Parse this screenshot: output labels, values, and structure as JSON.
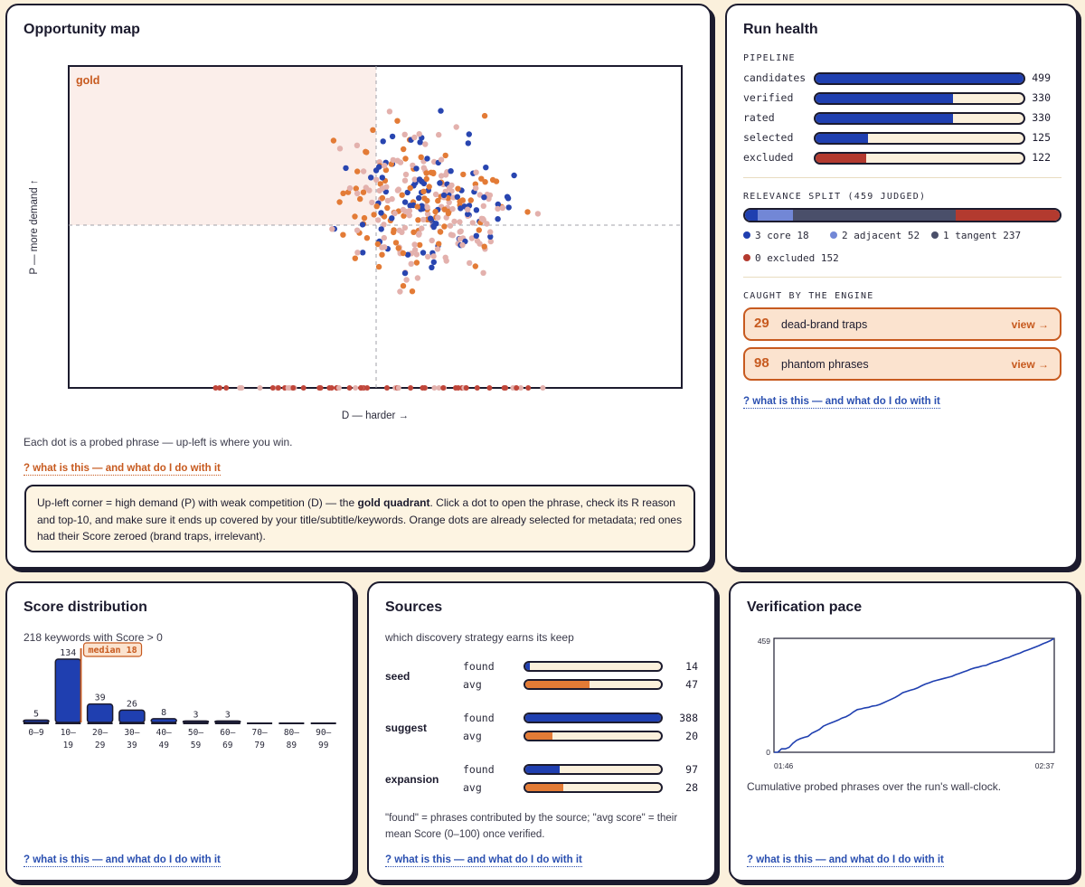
{
  "opportunity": {
    "title": "Opportunity map",
    "gold_label": "gold",
    "chart_data": {
      "type": "scatter",
      "xlabel": "D — harder →",
      "ylabel": "P — more demand ↑",
      "series": [
        {
          "color": "#2845b0"
        },
        {
          "color": "#e37b36"
        },
        {
          "color": "#e3b1ad"
        },
        {
          "color": "#c0463a"
        }
      ]
    },
    "caption": "Each dot is a probed phrase — up-left is where you win.",
    "help": "?  what is this — and what do I do with it",
    "info": {
      "p1": "Up-left corner = high demand (P) with weak competition (D) — the ",
      "bold": "gold quadrant",
      "p2": ". Click a dot to open the phrase, check its R reason and top-10, and make sure it ends up covered by your title/subtitle/keywords. Orange dots are already selected for metadata; red ones had their Score zeroed (brand traps, irrelevant)."
    }
  },
  "health": {
    "title": "Run health",
    "pipeline_label": "PIPELINE",
    "pipeline": [
      {
        "label": "candidates",
        "value": "499",
        "fraction": 1.0,
        "color": "blue"
      },
      {
        "label": "verified",
        "value": "330",
        "fraction": 0.661,
        "color": "blue"
      },
      {
        "label": "rated",
        "value": "330",
        "fraction": 0.661,
        "color": "blue"
      },
      {
        "label": "selected",
        "value": "125",
        "fraction": 0.25,
        "color": "blue"
      },
      {
        "label": "excluded",
        "value": "122",
        "fraction": 0.245,
        "color": "red"
      }
    ],
    "relevance_label": "RELEVANCE SPLIT (459 JUDGED)",
    "relevance": [
      {
        "label": "3 core 18",
        "value": 18,
        "color": "#1f3fb0"
      },
      {
        "label": "2 adjacent 52",
        "value": 52,
        "color": "#7287d6"
      },
      {
        "label": "1 tangent 237",
        "value": 237,
        "color": "#4a4f6a"
      },
      {
        "label": "0 excluded 152",
        "value": 152,
        "color": "#b33a2f"
      }
    ],
    "caught_label": "CAUGHT BY THE ENGINE",
    "caught": [
      {
        "num": "29",
        "text": "dead-brand traps",
        "action": "view →"
      },
      {
        "num": "98",
        "text": "phantom phrases",
        "action": "view →"
      }
    ],
    "help": "?  what is this — and what do I do with it"
  },
  "score": {
    "title": "Score distribution",
    "subtitle": "218 keywords with Score > 0",
    "median_label": "median 18",
    "chart_data": {
      "type": "bar",
      "categories": [
        "0–9",
        "10–19",
        "20–29",
        "30–39",
        "40–49",
        "50–59",
        "60–69",
        "70–79",
        "80–89",
        "90–99"
      ],
      "values": [
        5,
        134,
        39,
        26,
        8,
        3,
        3,
        0,
        0,
        0
      ],
      "value_labels": [
        "5",
        "134",
        "39",
        "26",
        "8",
        "3",
        "3",
        "",
        "",
        ""
      ],
      "cat_top": [
        "0–9",
        "10–",
        "20–",
        "30–",
        "40–",
        "50–",
        "60–",
        "70–",
        "80–",
        "90–"
      ],
      "cat_bottom": [
        "",
        "19",
        "29",
        "39",
        "49",
        "59",
        "69",
        "79",
        "89",
        "99"
      ],
      "median": 18
    },
    "help": "?  what is this — and what do I do with it"
  },
  "sources": {
    "title": "Sources",
    "subtitle": "which discovery strategy earns its keep",
    "rows": [
      {
        "name": "seed",
        "found": "14",
        "found_frac": 0.036,
        "avg": "47",
        "avg_frac": 0.47
      },
      {
        "name": "suggest",
        "found": "388",
        "found_frac": 1.0,
        "avg": "20",
        "avg_frac": 0.2
      },
      {
        "name": "expansion",
        "found": "97",
        "found_frac": 0.25,
        "avg": "28",
        "avg_frac": 0.28
      }
    ],
    "found_label": "found",
    "avg_label": "avg",
    "note": "\"found\" = phrases contributed by the source; \"avg score\" = their mean Score (0–100) once verified.",
    "help": "?  what is this — and what do I do with it"
  },
  "pace": {
    "title": "Verification pace",
    "chart_data": {
      "type": "line",
      "y_top_label": "459",
      "y_bottom_label": "0",
      "x_start_label": "01:46",
      "x_end_label": "02:37",
      "ylim": [
        0,
        459
      ],
      "y": [
        0,
        0,
        14,
        14,
        20,
        36,
        48,
        55,
        60,
        64,
        77,
        84,
        92,
        105,
        112,
        118,
        124,
        130,
        138,
        143,
        151,
        163,
        172,
        175,
        179,
        181,
        186,
        188,
        193,
        200,
        207,
        214,
        221,
        230,
        240,
        245,
        250,
        254,
        260,
        268,
        275,
        280,
        286,
        290,
        294,
        298,
        302,
        306,
        313,
        318,
        324,
        329,
        335,
        340,
        343,
        348,
        350,
        357,
        363,
        367,
        372,
        378,
        382,
        389,
        395,
        400,
        407,
        412,
        418,
        424,
        430,
        437,
        443,
        450,
        459
      ]
    },
    "caption": "Cumulative probed phrases over the run's wall-clock.",
    "help": "?  what is this — and what do I do with it"
  }
}
